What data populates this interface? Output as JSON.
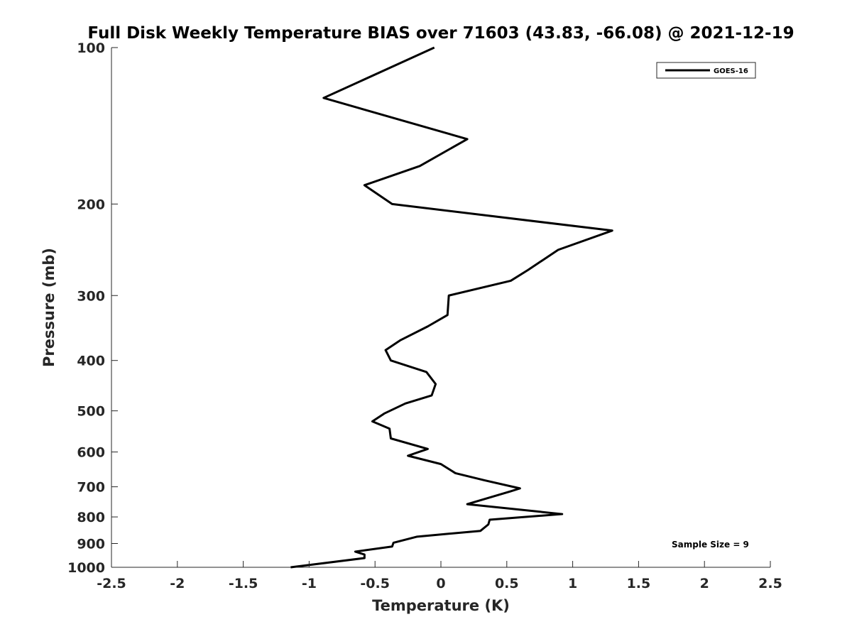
{
  "chart_data": {
    "type": "line",
    "title": "Full Disk Weekly Temperature BIAS over 71603 (43.83, -66.08) @ 2021-12-19",
    "xlabel": "Temperature (K)",
    "ylabel": "Pressure (mb)",
    "xlim": [
      -2.5,
      2.5
    ],
    "ylim": [
      100,
      1000
    ],
    "y_scale": "log",
    "y_reversed": true,
    "grid": false,
    "legend_position": "top-right",
    "x_ticks": [
      "-2.5",
      "-2",
      "-1.5",
      "-1",
      "-0.5",
      "0",
      "0.5",
      "1",
      "1.5",
      "2",
      "2.5"
    ],
    "y_ticks": [
      "100",
      "200",
      "300",
      "400",
      "500",
      "600",
      "700",
      "800",
      "900",
      "1000"
    ],
    "series": [
      {
        "name": "GOES-16",
        "color": "#000000",
        "points": [
          [
            -0.05,
            100
          ],
          [
            -0.89,
            125
          ],
          [
            0.2,
            150
          ],
          [
            -0.16,
            169
          ],
          [
            -0.58,
            184
          ],
          [
            -0.37,
            200
          ],
          [
            1.3,
            225
          ],
          [
            0.89,
            245
          ],
          [
            0.66,
            268
          ],
          [
            0.53,
            281
          ],
          [
            0.06,
            300
          ],
          [
            0.05,
            327
          ],
          [
            -0.1,
            344
          ],
          [
            -0.31,
            366
          ],
          [
            -0.42,
            382
          ],
          [
            -0.38,
            400
          ],
          [
            -0.11,
            421
          ],
          [
            -0.04,
            444
          ],
          [
            -0.07,
            467
          ],
          [
            -0.27,
            484
          ],
          [
            -0.43,
            506
          ],
          [
            -0.52,
            524
          ],
          [
            -0.39,
            541
          ],
          [
            -0.38,
            565
          ],
          [
            -0.1,
            592
          ],
          [
            -0.25,
            610
          ],
          [
            0.0,
            633
          ],
          [
            0.11,
            659
          ],
          [
            0.33,
            680
          ],
          [
            0.6,
            705
          ],
          [
            0.53,
            714
          ],
          [
            0.2,
            756
          ],
          [
            0.92,
            790
          ],
          [
            0.37,
            810
          ],
          [
            0.36,
            827
          ],
          [
            0.3,
            851
          ],
          [
            -0.18,
            873
          ],
          [
            -0.36,
            897
          ],
          [
            -0.37,
            912
          ],
          [
            -0.65,
            933
          ],
          [
            -0.58,
            945
          ],
          [
            -0.58,
            960
          ],
          [
            -1.14,
            1000
          ]
        ]
      }
    ],
    "annotations": [
      "Sample Size = 9"
    ]
  }
}
